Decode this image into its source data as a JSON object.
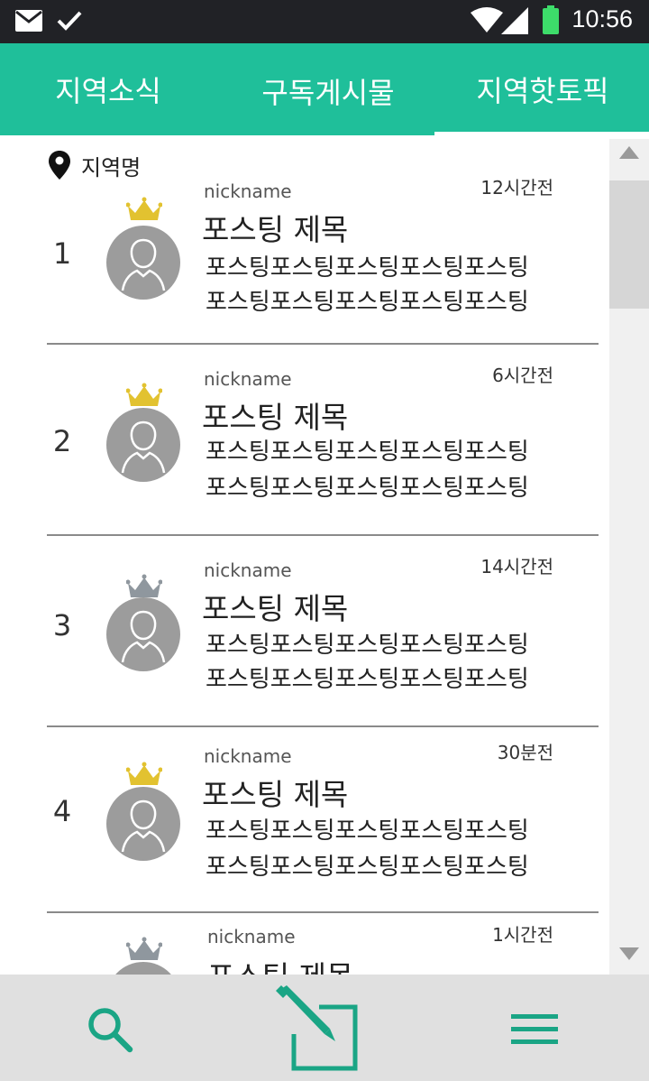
{
  "status_bar": {
    "time": "10:56",
    "icons": [
      "mail-icon",
      "check-icon",
      "wifi-icon",
      "signal-icon",
      "battery-icon"
    ],
    "battery_color": "#3ddc6a"
  },
  "tabs": [
    {
      "label": "지역소식",
      "selected": false
    },
    {
      "label": "구독게시물",
      "selected": true
    },
    {
      "label": "지역핫토픽",
      "selected": false
    }
  ],
  "accent_color": "#1fbf9a",
  "region": {
    "icon": "location-pin-icon",
    "label": "지역명"
  },
  "posts": [
    {
      "rank": "1",
      "crown": "gold",
      "nickname": "nickname",
      "time": "12시간전",
      "title": "포스팅 제목",
      "lines": [
        "포스팅포스팅포스팅포스팅포스팅",
        "포스팅포스팅포스팅포스팅포스팅"
      ]
    },
    {
      "rank": "2",
      "crown": "gold",
      "nickname": "nickname",
      "time": "6시간전",
      "title": "포스팅 제목",
      "lines": [
        "포스팅포스팅포스팅포스팅포스팅",
        "포스팅포스팅포스팅포스팅포스팅"
      ]
    },
    {
      "rank": "3",
      "crown": "silver",
      "nickname": "nickname",
      "time": "14시간전",
      "title": "포스팅 제목",
      "lines": [
        "포스팅포스팅포스팅포스팅포스팅",
        "포스팅포스팅포스팅포스팅포스팅"
      ]
    },
    {
      "rank": "4",
      "crown": "gold",
      "nickname": "nickname",
      "time": "30분전",
      "title": "포스팅 제목",
      "lines": [
        "포스팅포스팅포스팅포스팅포스팅",
        "포스팅포스팅포스팅포스팅포스팅"
      ]
    },
    {
      "rank": "",
      "crown": "silver",
      "nickname": "nickname",
      "time": "1시간전",
      "title": "포스팅 제목",
      "lines": [
        "",
        ""
      ]
    }
  ],
  "crown_colors": {
    "gold": "#e2c230",
    "silver": "#8f979e"
  },
  "bottom_bar": {
    "icons": [
      "search-icon",
      "write-icon",
      "menu-icon"
    ]
  }
}
